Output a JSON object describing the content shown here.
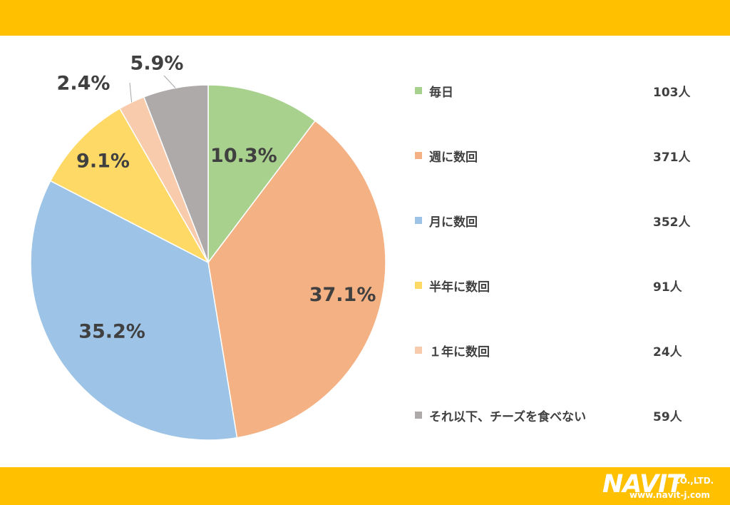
{
  "chart_data": {
    "type": "pie",
    "title": "",
    "categories": [
      "毎日",
      "週に数回",
      "月に数回",
      "半年に数回",
      "１年に数回",
      "それ以下、チーズを食べない"
    ],
    "values": [
      10.3,
      37.1,
      35.2,
      9.1,
      2.4,
      5.9
    ],
    "value_labels": [
      "10.3%",
      "37.1%",
      "35.2%",
      "9.1%",
      "2.4%",
      "5.9%"
    ],
    "counts": [
      "103人",
      "371人",
      "352人",
      "91人",
      "24人",
      "59人"
    ],
    "colors": [
      "#A9D18E",
      "#F4B183",
      "#9DC3E6",
      "#FFD966",
      "#F8CBAD",
      "#AEAAAA"
    ],
    "legend_position": "right",
    "start_angle": "12 o'clock, clockwise"
  },
  "brand": {
    "logo_name": "NAVIT",
    "company": "CO.,LTD.",
    "url": "www.navit-j.com",
    "band_color": "#FFC000"
  }
}
